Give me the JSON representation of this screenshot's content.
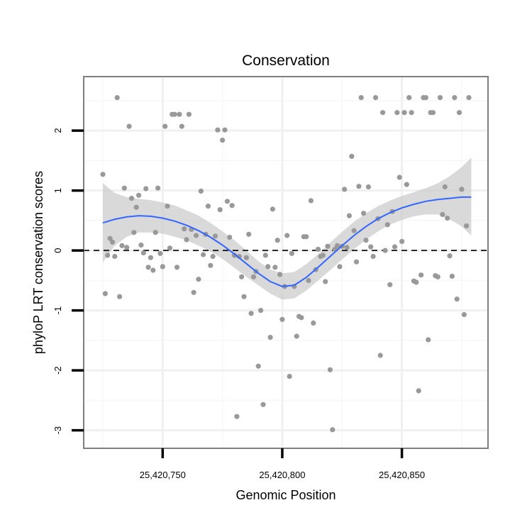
{
  "chart_data": {
    "type": "scatter",
    "title": "Conservation",
    "xlabel": "Genomic Position",
    "ylabel": "phyloP LRT conservation scores",
    "xlim": [
      25420717,
      25420886
    ],
    "ylim": [
      -3.3,
      2.9
    ],
    "x_ticks": [
      {
        "value": 25420750,
        "label": "25,420,750"
      },
      {
        "value": 25420800,
        "label": "25,420,800"
      },
      {
        "value": 25420850,
        "label": "25,420,850"
      }
    ],
    "y_ticks": [
      {
        "value": -3,
        "label": "-3"
      },
      {
        "value": -2,
        "label": "-2"
      },
      {
        "value": -1,
        "label": "-1"
      },
      {
        "value": 0,
        "label": "0"
      },
      {
        "value": 1,
        "label": "1"
      },
      {
        "value": 2,
        "label": "2"
      }
    ],
    "reference_line": {
      "y": 0,
      "style": "dashed",
      "color": "#000000"
    },
    "point_color": "#999999",
    "smooth_color": "#3366ff",
    "band_color": "#cccccc",
    "points": [
      [
        25420725,
        1.27
      ],
      [
        25420726,
        -0.72
      ],
      [
        25420727,
        -0.08
      ],
      [
        25420728,
        0.2
      ],
      [
        25420729,
        0.14
      ],
      [
        25420730,
        -0.1
      ],
      [
        25420731,
        2.55
      ],
      [
        25420732,
        -0.77
      ],
      [
        25420733,
        0.08
      ],
      [
        25420734,
        1.04
      ],
      [
        25420735,
        0.05
      ],
      [
        25420736,
        2.07
      ],
      [
        25420737,
        0.87
      ],
      [
        25420738,
        0.3
      ],
      [
        25420739,
        0.72
      ],
      [
        25420740,
        0.92
      ],
      [
        25420741,
        0.09
      ],
      [
        25420742,
        -0.04
      ],
      [
        25420743,
        1.03
      ],
      [
        25420744,
        -0.28
      ],
      [
        25420745,
        -0.12
      ],
      [
        25420746,
        -0.33
      ],
      [
        25420747,
        0.3
      ],
      [
        25420748,
        1.04
      ],
      [
        25420749,
        -0.05
      ],
      [
        25420750,
        -0.27
      ],
      [
        25420751,
        2.07
      ],
      [
        25420752,
        0.74
      ],
      [
        25420753,
        0.04
      ],
      [
        25420754,
        2.27
      ],
      [
        25420755,
        2.27
      ],
      [
        25420756,
        -0.28
      ],
      [
        25420757,
        2.27
      ],
      [
        25420758,
        2.07
      ],
      [
        25420759,
        0.36
      ],
      [
        25420760,
        0.18
      ],
      [
        25420761,
        2.27
      ],
      [
        25420762,
        0.35
      ],
      [
        25420763,
        -0.7
      ],
      [
        25420764,
        0.25
      ],
      [
        25420765,
        -0.48
      ],
      [
        25420766,
        0.99
      ],
      [
        25420767,
        -0.07
      ],
      [
        25420768,
        0.27
      ],
      [
        25420769,
        0.74
      ],
      [
        25420770,
        -0.25
      ],
      [
        25420771,
        -0.1
      ],
      [
        25420772,
        0.24
      ],
      [
        25420773,
        2.01
      ],
      [
        25420774,
        0.68
      ],
      [
        25420775,
        1.84
      ],
      [
        25420776,
        2.01
      ],
      [
        25420777,
        0.82
      ],
      [
        25420778,
        0.22
      ],
      [
        25420779,
        0.75
      ],
      [
        25420780,
        -0.08
      ],
      [
        25420781,
        -2.77
      ],
      [
        25420782,
        -0.1
      ],
      [
        25420783,
        -0.44
      ],
      [
        25420784,
        -0.77
      ],
      [
        25420785,
        -0.12
      ],
      [
        25420786,
        0.27
      ],
      [
        25420787,
        -1.05
      ],
      [
        25420788,
        -0.44
      ],
      [
        25420789,
        -0.35
      ],
      [
        25420790,
        -1.93
      ],
      [
        25420791,
        -1.0
      ],
      [
        25420792,
        -2.57
      ],
      [
        25420793,
        -0.08
      ],
      [
        25420794,
        -0.27
      ],
      [
        25420795,
        -1.45
      ],
      [
        25420796,
        0.69
      ],
      [
        25420797,
        -0.28
      ],
      [
        25420798,
        0.17
      ],
      [
        25420799,
        -0.4
      ],
      [
        25420800,
        -1.15
      ],
      [
        25420801,
        -0.6
      ],
      [
        25420802,
        0.25
      ],
      [
        25420803,
        -2.1
      ],
      [
        25420804,
        -0.05
      ],
      [
        25420805,
        -0.6
      ],
      [
        25420806,
        -1.43
      ],
      [
        25420807,
        -1.1
      ],
      [
        25420808,
        -1.12
      ],
      [
        25420809,
        0.23
      ],
      [
        25420810,
        0.23
      ],
      [
        25420811,
        -0.5
      ],
      [
        25420812,
        0.83
      ],
      [
        25420813,
        -1.21
      ],
      [
        25420814,
        -0.32
      ],
      [
        25420815,
        0.02
      ],
      [
        25420816,
        -0.1
      ],
      [
        25420817,
        -0.08
      ],
      [
        25420818,
        -0.52
      ],
      [
        25420819,
        0.07
      ],
      [
        25420820,
        -1.99
      ],
      [
        25420821,
        -2.99
      ],
      [
        25420822,
        0.02
      ],
      [
        25420823,
        0.08
      ],
      [
        25420824,
        -0.27
      ],
      [
        25420825,
        0.07
      ],
      [
        25420826,
        1.02
      ],
      [
        25420827,
        0.05
      ],
      [
        25420828,
        0.58
      ],
      [
        25420829,
        1.57
      ],
      [
        25420830,
        0.33
      ],
      [
        25420831,
        -0.19
      ],
      [
        25420832,
        1.07
      ],
      [
        25420833,
        2.55
      ],
      [
        25420834,
        0.62
      ],
      [
        25420835,
        0.17
      ],
      [
        25420836,
        1.06
      ],
      [
        25420837,
        0.06
      ],
      [
        25420838,
        -0.1
      ],
      [
        25420839,
        2.55
      ],
      [
        25420840,
        0.53
      ],
      [
        25420841,
        -1.75
      ],
      [
        25420842,
        2.3
      ],
      [
        25420843,
        0.0
      ],
      [
        25420844,
        0.43
      ],
      [
        25420845,
        -0.57
      ],
      [
        25420846,
        0.65
      ],
      [
        25420847,
        0.06
      ],
      [
        25420848,
        2.3
      ],
      [
        25420849,
        1.22
      ],
      [
        25420850,
        0.15
      ],
      [
        25420851,
        2.3
      ],
      [
        25420852,
        1.1
      ],
      [
        25420853,
        2.55
      ],
      [
        25420854,
        2.3
      ],
      [
        25420855,
        -0.51
      ],
      [
        25420856,
        -0.53
      ],
      [
        25420857,
        -2.34
      ],
      [
        25420858,
        -0.41
      ],
      [
        25420859,
        2.55
      ],
      [
        25420860,
        2.55
      ],
      [
        25420861,
        -1.49
      ],
      [
        25420862,
        2.3
      ],
      [
        25420863,
        2.3
      ],
      [
        25420864,
        -0.42
      ],
      [
        25420865,
        -0.44
      ],
      [
        25420866,
        2.55
      ],
      [
        25420867,
        0.6
      ],
      [
        25420868,
        1.06
      ],
      [
        25420869,
        0.54
      ],
      [
        25420870,
        -0.09
      ],
      [
        25420871,
        -0.43
      ],
      [
        25420872,
        2.55
      ],
      [
        25420873,
        -0.81
      ],
      [
        25420874,
        2.3
      ],
      [
        25420875,
        1.02
      ],
      [
        25420876,
        -1.07
      ],
      [
        25420877,
        0.41
      ],
      [
        25420878,
        2.55
      ]
    ],
    "smooth_line": {
      "x": [
        25420725,
        25420730,
        25420735,
        25420740,
        25420745,
        25420750,
        25420755,
        25420760,
        25420765,
        25420770,
        25420775,
        25420780,
        25420785,
        25420790,
        25420795,
        25420800,
        25420805,
        25420810,
        25420815,
        25420820,
        25420825,
        25420830,
        25420835,
        25420840,
        25420845,
        25420850,
        25420855,
        25420860,
        25420865,
        25420870,
        25420875,
        25420879
      ],
      "y": [
        0.46,
        0.52,
        0.56,
        0.58,
        0.57,
        0.54,
        0.49,
        0.42,
        0.33,
        0.22,
        0.09,
        -0.06,
        -0.22,
        -0.38,
        -0.52,
        -0.6,
        -0.58,
        -0.45,
        -0.28,
        -0.1,
        0.08,
        0.25,
        0.4,
        0.53,
        0.63,
        0.71,
        0.77,
        0.82,
        0.85,
        0.87,
        0.89,
        0.89
      ]
    },
    "ci_band": {
      "lower": [
        -0.2,
        0.08,
        0.23,
        0.3,
        0.3,
        0.28,
        0.23,
        0.17,
        0.08,
        -0.02,
        -0.14,
        -0.29,
        -0.44,
        -0.58,
        -0.72,
        -0.82,
        -0.8,
        -0.67,
        -0.5,
        -0.33,
        -0.15,
        0.02,
        0.18,
        0.32,
        0.43,
        0.51,
        0.57,
        0.6,
        0.6,
        0.52,
        0.4,
        0.25
      ],
      "upper": [
        1.12,
        0.96,
        0.89,
        0.86,
        0.84,
        0.8,
        0.75,
        0.67,
        0.58,
        0.46,
        0.32,
        0.17,
        0.0,
        -0.18,
        -0.32,
        -0.38,
        -0.36,
        -0.23,
        -0.06,
        0.13,
        0.31,
        0.48,
        0.62,
        0.74,
        0.83,
        0.91,
        0.97,
        1.04,
        1.12,
        1.24,
        1.39,
        1.55
      ]
    }
  }
}
